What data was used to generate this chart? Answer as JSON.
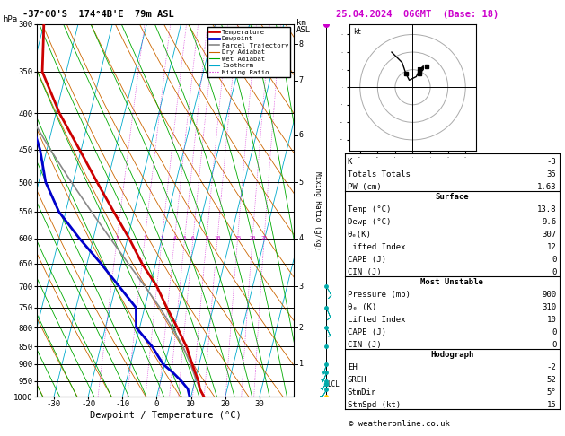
{
  "title_left": "-37°00'S  174°4B'E  79m ASL",
  "title_right": "25.04.2024  06GMT  (Base: 18)",
  "xlabel": "Dewpoint / Temperature (°C)",
  "ylabel_left": "hPa",
  "bg_color": "#ffffff",
  "temp_color": "#cc0000",
  "dewp_color": "#0000cc",
  "parcel_color": "#888888",
  "dry_adiabat_color": "#cc6600",
  "wet_adiabat_color": "#00aa00",
  "isotherm_color": "#00aacc",
  "mixing_ratio_color": "#cc00cc",
  "wind_barb_color": "#00aaaa",
  "pressure_levels": [
    300,
    350,
    400,
    450,
    500,
    550,
    600,
    650,
    700,
    750,
    800,
    850,
    900,
    950,
    1000
  ],
  "temp_data": {
    "pressure": [
      1000,
      975,
      950,
      925,
      900,
      850,
      800,
      750,
      700,
      650,
      600,
      550,
      500,
      450,
      400,
      350,
      300
    ],
    "temp": [
      13.8,
      12.0,
      11.0,
      9.5,
      8.0,
      5.0,
      1.0,
      -3.5,
      -8.0,
      -14.0,
      -19.5,
      -26.0,
      -33.0,
      -40.5,
      -49.0,
      -57.0,
      -60.0
    ]
  },
  "dewp_data": {
    "pressure": [
      1000,
      975,
      950,
      925,
      900,
      850,
      800,
      750,
      700,
      650,
      600,
      550,
      500,
      450,
      400,
      350,
      300
    ],
    "dewp": [
      9.6,
      8.5,
      6.0,
      3.0,
      -0.5,
      -5.0,
      -11.0,
      -12.5,
      -19.0,
      -26.0,
      -34.0,
      -42.0,
      -48.0,
      -52.0,
      -58.0,
      -62.0,
      -66.0
    ]
  },
  "parcel_data": {
    "pressure": [
      1000,
      975,
      950,
      925,
      900,
      850,
      800,
      750,
      700,
      650,
      600,
      550,
      500,
      450,
      400,
      350,
      300
    ],
    "temp": [
      13.8,
      12.0,
      10.5,
      9.0,
      7.5,
      4.0,
      -0.5,
      -5.5,
      -11.5,
      -18.0,
      -25.0,
      -32.5,
      -40.5,
      -49.0,
      -58.0,
      -64.0,
      -66.0
    ]
  },
  "wind_pressures": [
    1000,
    975,
    950,
    925,
    900,
    850,
    800,
    750,
    700
  ],
  "wind_u": [
    2,
    3,
    3,
    2,
    1,
    -1,
    -2,
    -3,
    -5
  ],
  "wind_v": [
    4,
    5,
    6,
    5,
    3,
    2,
    4,
    7,
    9
  ],
  "wind_colors": [
    "#ffcc00",
    "#00aaaa",
    "#00aaaa",
    "#00aaaa",
    "#00aaaa",
    "#00aaaa",
    "#00aaaa",
    "#00aaaa",
    "#00aaaa"
  ],
  "lcl_pressure": 960,
  "km_ticks": [
    1,
    2,
    3,
    4,
    5,
    6,
    7,
    8
  ],
  "km_pressures": [
    900,
    800,
    700,
    600,
    500,
    430,
    360,
    320
  ],
  "mixing_ratio_vals": [
    1,
    2,
    3,
    4,
    5,
    6,
    8,
    10,
    15,
    20,
    25
  ],
  "mr_label_pressure": 600,
  "xmin": -35,
  "xmax": 40,
  "skew": 22.5,
  "K": -3,
  "TT": 35,
  "PW": 1.63,
  "surf_temp": 13.8,
  "surf_dewp": 9.6,
  "surf_theta_e": 307,
  "surf_li": 12,
  "surf_cape": 0,
  "surf_cin": 0,
  "mu_pressure": 900,
  "mu_theta_e": 310,
  "mu_li": 10,
  "mu_cape": 0,
  "mu_cin": 0,
  "hodo_eh": -2,
  "hodo_sreh": 52,
  "hodo_stmdir": "5°",
  "hodo_stmspd": 15,
  "hodo_u": [
    2,
    3,
    3,
    2,
    1,
    -1,
    -2,
    -3,
    -5,
    -6
  ],
  "hodo_v": [
    4,
    5,
    6,
    5,
    3,
    2,
    4,
    7,
    9,
    10
  ],
  "storm_u": 4,
  "storm_v": 6
}
